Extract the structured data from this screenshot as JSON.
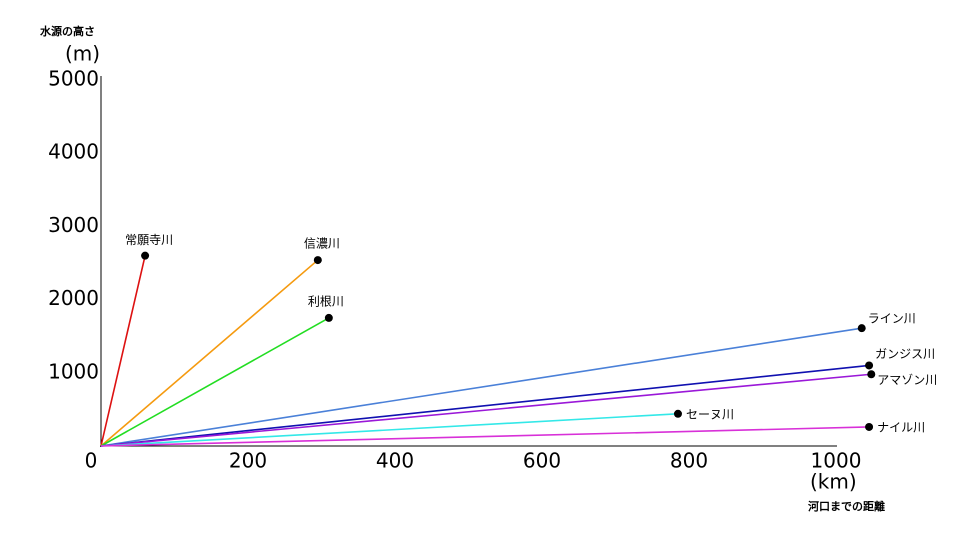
{
  "chart_data": {
    "type": "line",
    "y_label": "水源の高さ",
    "y_unit": "(m)",
    "x_label": "河口までの距離",
    "x_unit": "(km)",
    "xlim": [
      0,
      1000
    ],
    "ylim": [
      0,
      5000
    ],
    "xticks": [
      0,
      200,
      400,
      600,
      800,
      1000
    ],
    "yticks": [
      1000,
      2000,
      3000,
      4000,
      5000
    ],
    "grid": false,
    "series": [
      {
        "name": "常願寺川",
        "color": "#dd1111",
        "x": [
          0,
          60
        ],
        "values": [
          0,
          2600
        ]
      },
      {
        "name": "信濃川",
        "color": "#f59a0f",
        "x": [
          0,
          295
        ],
        "values": [
          0,
          2540
        ]
      },
      {
        "name": "利根川",
        "color": "#22dd22",
        "x": [
          0,
          310
        ],
        "values": [
          0,
          1750
        ]
      },
      {
        "name": "ライン川",
        "color": "#4a80d8",
        "x": [
          0,
          1035
        ],
        "values": [
          0,
          1610
        ]
      },
      {
        "name": "ガンジス川",
        "color": "#1010b0",
        "x": [
          0,
          1045
        ],
        "values": [
          0,
          1100
        ]
      },
      {
        "name": "アマゾン川",
        "color": "#9a18d8",
        "x": [
          0,
          1048
        ],
        "values": [
          0,
          980
        ]
      },
      {
        "name": "セーヌ川",
        "color": "#33e8e8",
        "x": [
          0,
          785
        ],
        "values": [
          0,
          440
        ]
      },
      {
        "name": "ナイル川",
        "color": "#d830d8",
        "x": [
          0,
          1045
        ],
        "values": [
          0,
          260
        ]
      }
    ]
  }
}
